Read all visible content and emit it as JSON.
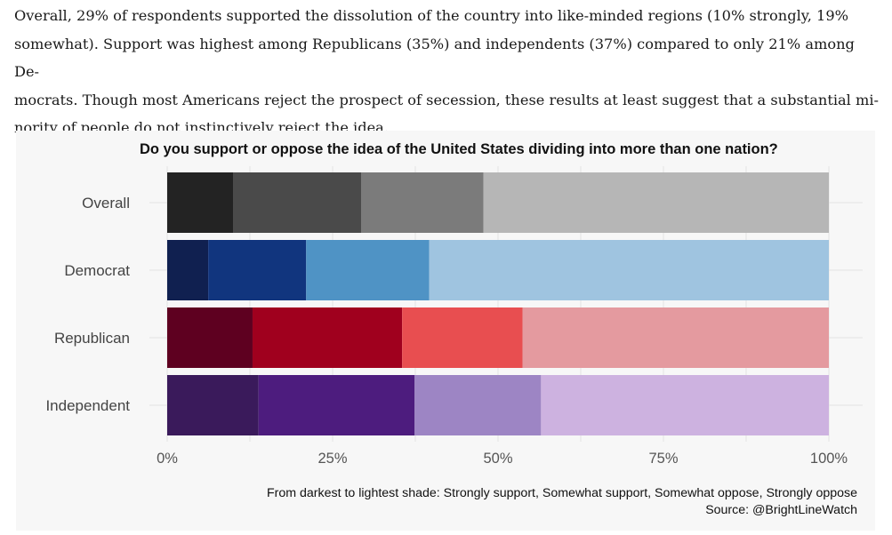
{
  "intro": {
    "line1": "Overall, 29% of respondents supported the dissolution of the country into like-minded regions (10% strongly, 19%",
    "line2": "somewhat). Support was highest among Republicans (35%) and independents (37%) compared to only 21% among De-",
    "line3": "mocrats. Though most Americans reject the prospect of secession, these results at least suggest that a substantial mi-",
    "line4": "nority of people do not instinctively reject the idea."
  },
  "chart_data": {
    "type": "bar",
    "orientation": "horizontal",
    "stacked": true,
    "title": "Do you support or oppose the idea of the United States dividing into more than one nation?",
    "categories": [
      "Overall",
      "Democrat",
      "Republican",
      "Independent"
    ],
    "response_levels": [
      "Strongly support",
      "Somewhat support",
      "Somewhat oppose",
      "Strongly oppose"
    ],
    "values": [
      [
        10,
        19.3,
        18.5,
        52.2
      ],
      [
        6.2,
        14.8,
        18.6,
        60.4
      ],
      [
        12.9,
        22.6,
        18.2,
        46.3
      ],
      [
        13.8,
        23.6,
        19.1,
        43.5
      ]
    ],
    "colors": [
      [
        "#232323",
        "#4a4a4a",
        "#7b7b7b",
        "#b6b6b6"
      ],
      [
        "#102050",
        "#11357e",
        "#4f93c5",
        "#9fc4e0"
      ],
      [
        "#5e0020",
        "#a0001e",
        "#e84e50",
        "#e49a9f"
      ],
      [
        "#3a1a5b",
        "#4d1c7e",
        "#9d85c4",
        "#cdb2e0"
      ]
    ],
    "xlim": [
      0,
      100
    ],
    "xticks": [
      "0%",
      "25%",
      "50%",
      "75%",
      "100%"
    ],
    "xlabel": "",
    "ylabel": "",
    "grid": true,
    "caption": "From darkest to lightest shade: Strongly support, Somewhat support, Somewhat oppose, Strongly oppose",
    "source": "Source: @BrightLineWatch"
  }
}
